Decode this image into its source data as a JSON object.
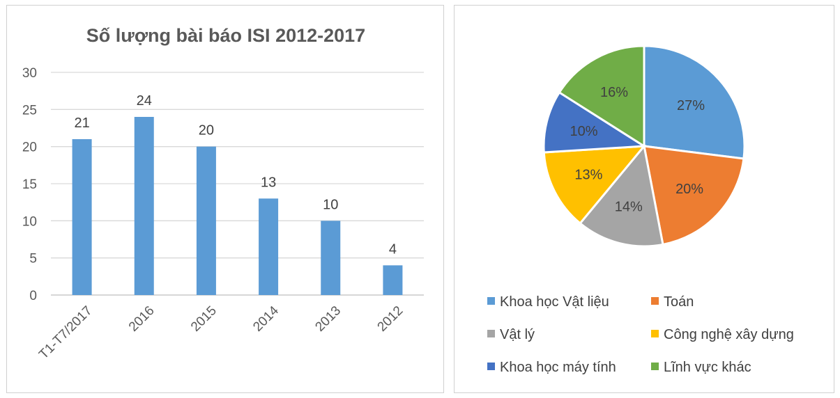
{
  "chart_data": [
    {
      "type": "bar",
      "title": "Số lượng bài báo ISI 2012-2017",
      "categories": [
        "T1-T7/2017",
        "2016",
        "2015",
        "2014",
        "2013",
        "2012"
      ],
      "values": [
        21,
        24,
        20,
        13,
        10,
        4
      ],
      "ylim": [
        0,
        30
      ],
      "yticks": [
        0,
        5,
        10,
        15,
        20,
        25,
        30
      ],
      "grid": true,
      "color": "#5b9bd5"
    },
    {
      "type": "pie",
      "labels": [
        "Khoa học Vật liệu",
        "Toán",
        "Vật lý",
        "Công nghệ xây dựng",
        "Khoa học máy tính",
        "Lĩnh vực khác"
      ],
      "values": [
        27,
        20,
        14,
        13,
        10,
        16
      ],
      "value_labels": [
        "27%",
        "20%",
        "14%",
        "13%",
        "10%",
        "16%"
      ],
      "colors": [
        "#5b9bd5",
        "#ed7d31",
        "#a5a5a5",
        "#ffc000",
        "#4472c4",
        "#70ad47"
      ],
      "legend": "bottom"
    }
  ]
}
